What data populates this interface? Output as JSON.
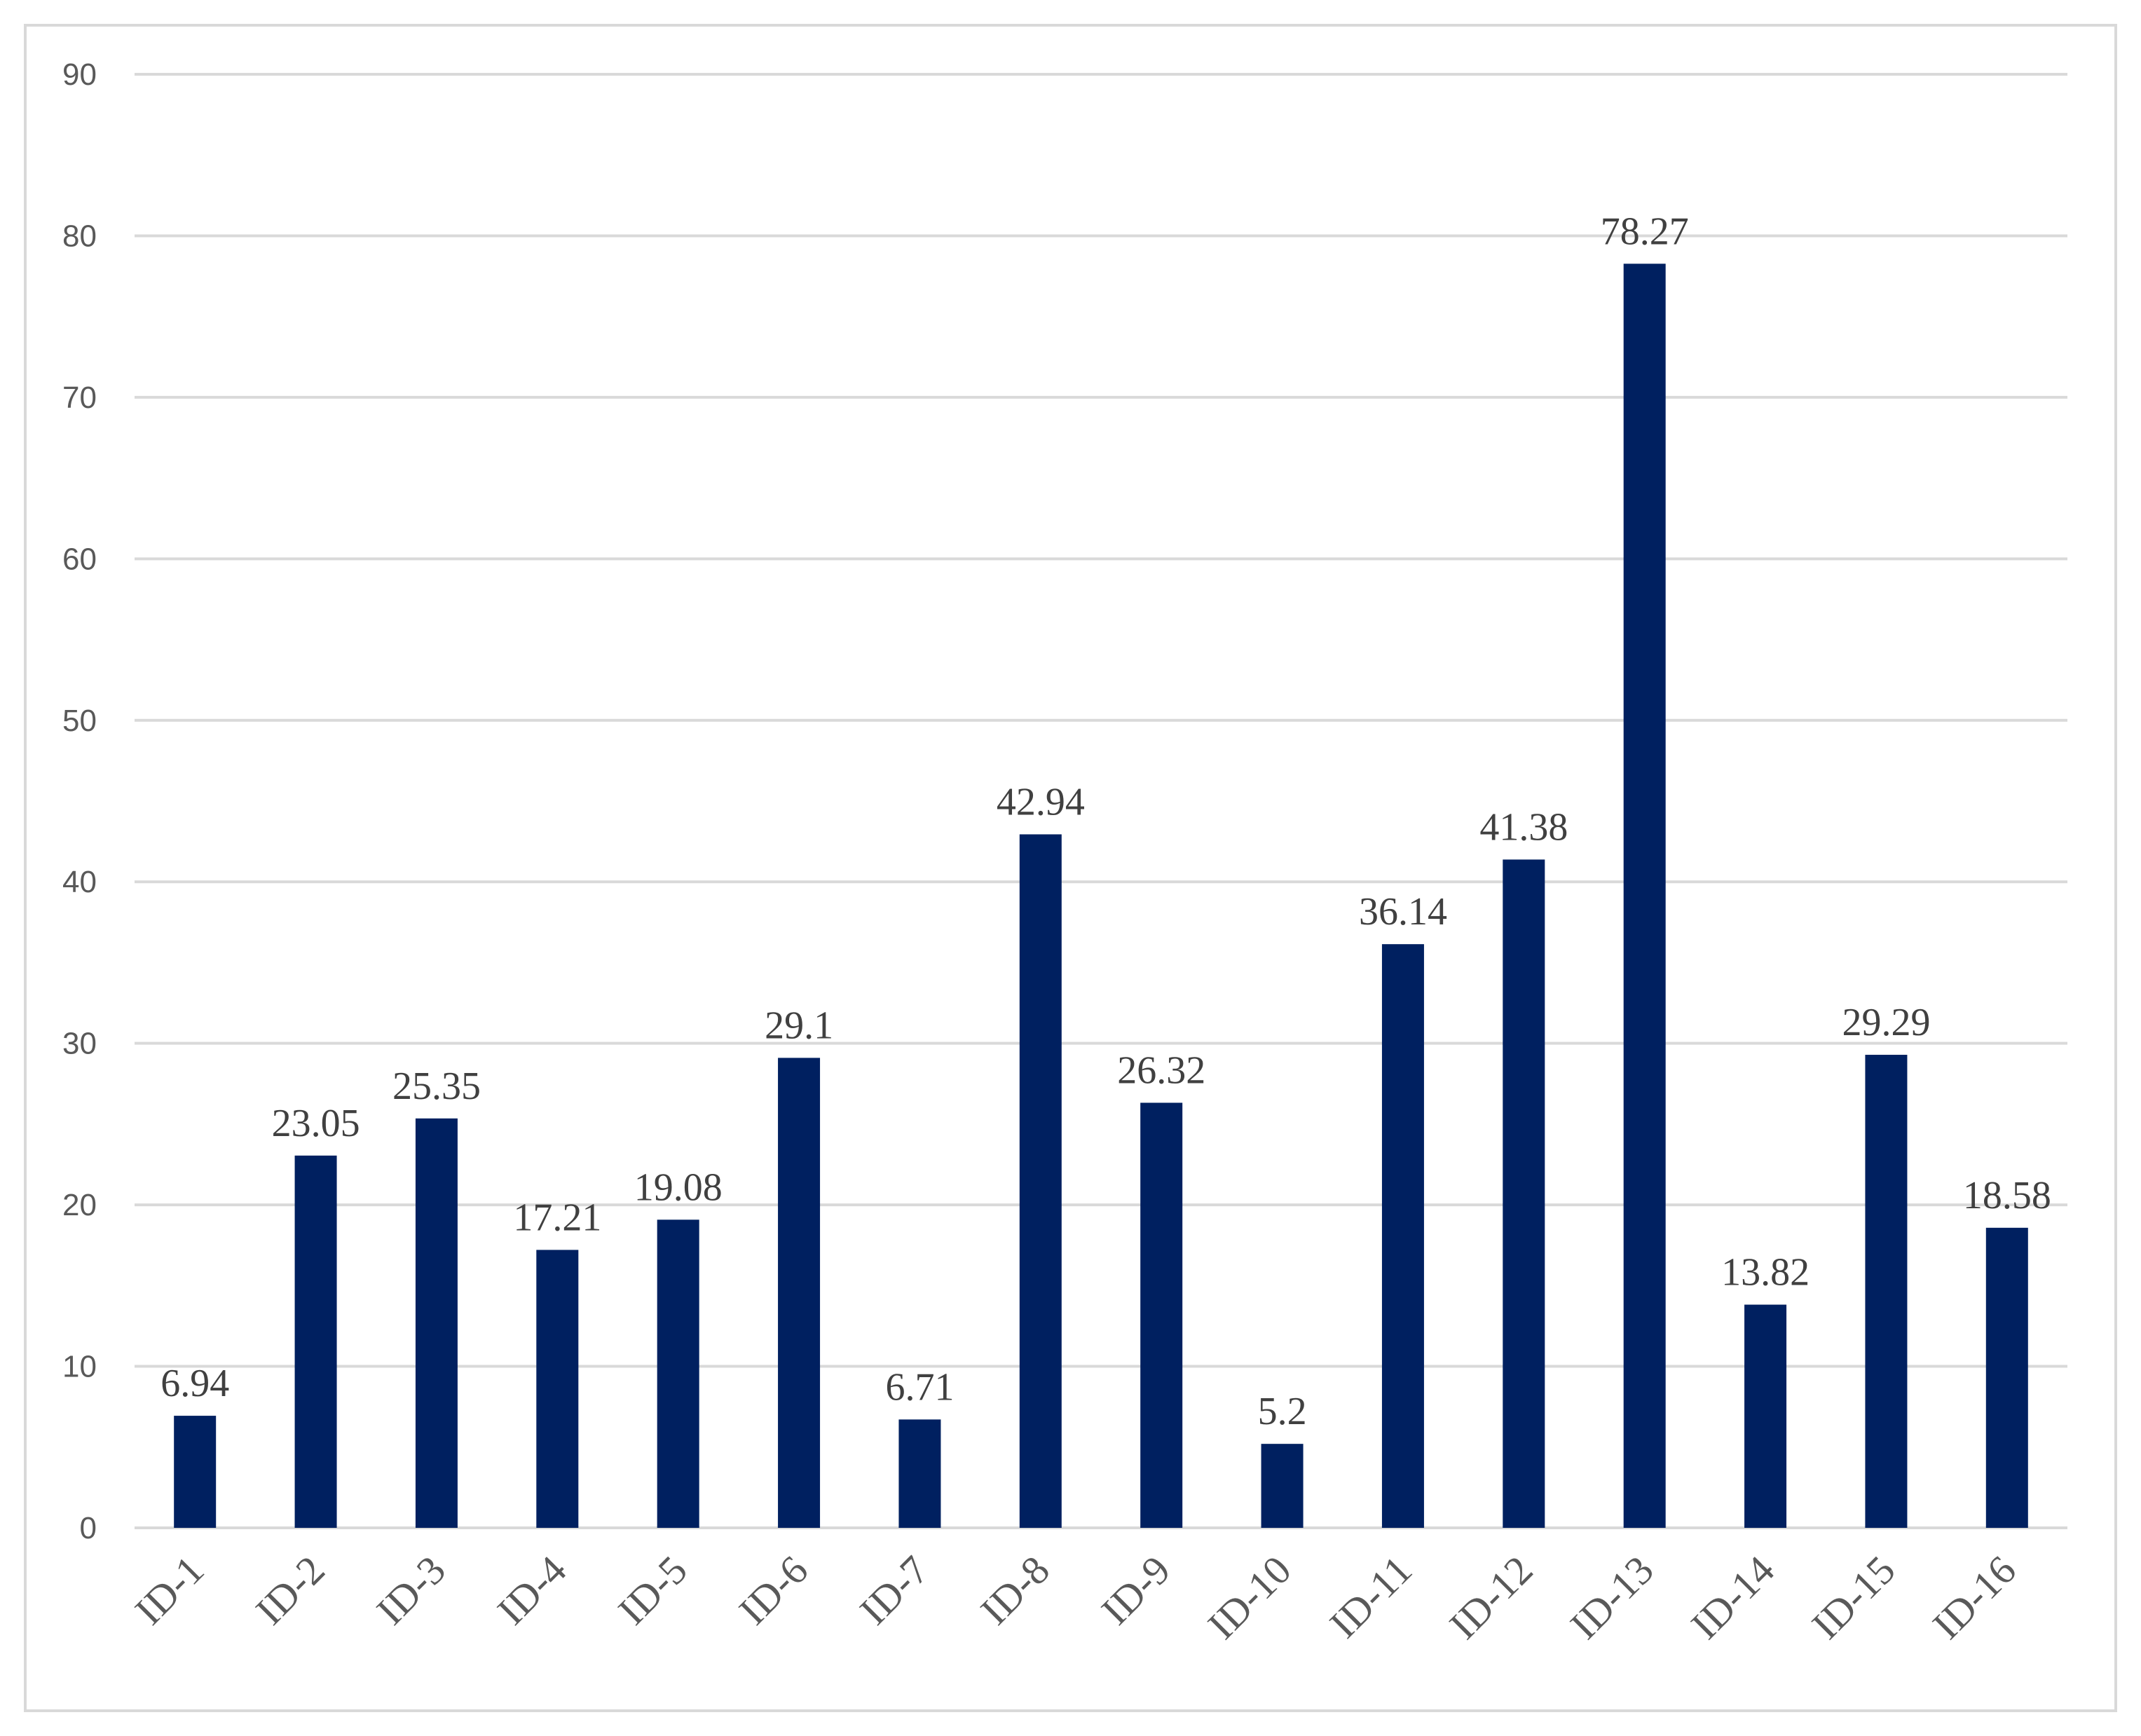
{
  "chart_data": {
    "type": "bar",
    "title": "",
    "xlabel": "",
    "ylabel": "",
    "categories": [
      "ID-1",
      "ID-2",
      "ID-3",
      "ID-4",
      "ID-5",
      "ID-6",
      "ID-7",
      "ID-8",
      "ID-9",
      "ID-10",
      "ID-11",
      "ID-12",
      "ID-13",
      "ID-14",
      "ID-15",
      "ID-16"
    ],
    "series": [
      {
        "values": [
          6.94,
          23.05,
          25.35,
          17.21,
          19.08,
          29.1,
          6.71,
          42.94,
          26.32,
          5.2,
          36.14,
          41.38,
          78.27,
          13.82,
          29.29,
          18.58
        ],
        "labels": [
          "6.94",
          "23.05",
          "25.35",
          "17.21",
          "19.08",
          "29.1",
          "6.71",
          "42.94",
          "26.32",
          "5.2",
          "36.14",
          "41.38",
          "78.27",
          "13.82",
          "29.29",
          "18.58"
        ],
        "color": "#002060"
      }
    ],
    "ylim": [
      0,
      90
    ],
    "yticks": [
      0,
      10,
      20,
      30,
      40,
      50,
      60,
      70,
      80,
      90
    ],
    "ytick_labels": [
      "0",
      "10",
      "20",
      "30",
      "40",
      "50",
      "60",
      "70",
      "80",
      "90"
    ],
    "grid": true,
    "legend": "none",
    "xtick_rotation": "diagonal",
    "data_labels": true
  }
}
